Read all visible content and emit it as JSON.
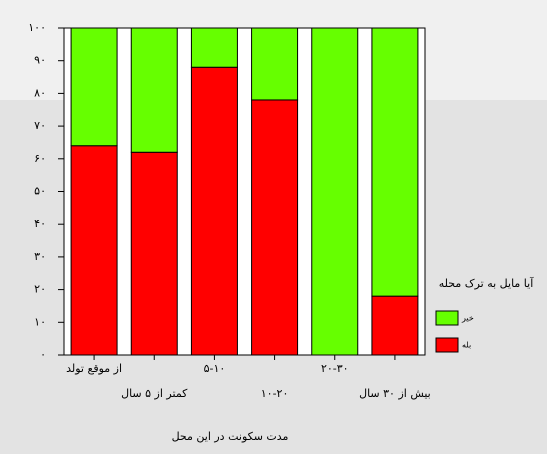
{
  "chart_data": {
    "type": "stacked_bar",
    "categories": [
      "از موقع تولد",
      "کمتر از ۵ سال",
      "۵-۱۰",
      "۱۰-۲۰",
      "۲۰-۳۰",
      "بیش از ۳۰ سال"
    ],
    "series": [
      {
        "name": "بله",
        "color": "#ff0000",
        "values": [
          64,
          62,
          88,
          78,
          0,
          18
        ]
      },
      {
        "name": "خیر",
        "color": "#66ff00",
        "values": [
          36,
          38,
          12,
          22,
          100,
          82
        ]
      }
    ],
    "ylim": [
      0,
      100
    ],
    "yticks": [
      {
        "value": 0,
        "label": "۰"
      },
      {
        "value": 10,
        "label": "۱۰"
      },
      {
        "value": 20,
        "label": "۲۰"
      },
      {
        "value": 30,
        "label": "۳۰"
      },
      {
        "value": 40,
        "label": "۴۰"
      },
      {
        "value": 50,
        "label": "۵۰"
      },
      {
        "value": 60,
        "label": "۶۰"
      },
      {
        "value": 70,
        "label": "۷۰"
      },
      {
        "value": 80,
        "label": "۸۰"
      },
      {
        "value": 90,
        "label": "۹۰"
      },
      {
        "value": 100,
        "label": "۱۰۰"
      }
    ],
    "x_label": "مدت سکونت در این محل",
    "legend_title": "آیا مایل به ترک محله",
    "legend_position": "right"
  }
}
